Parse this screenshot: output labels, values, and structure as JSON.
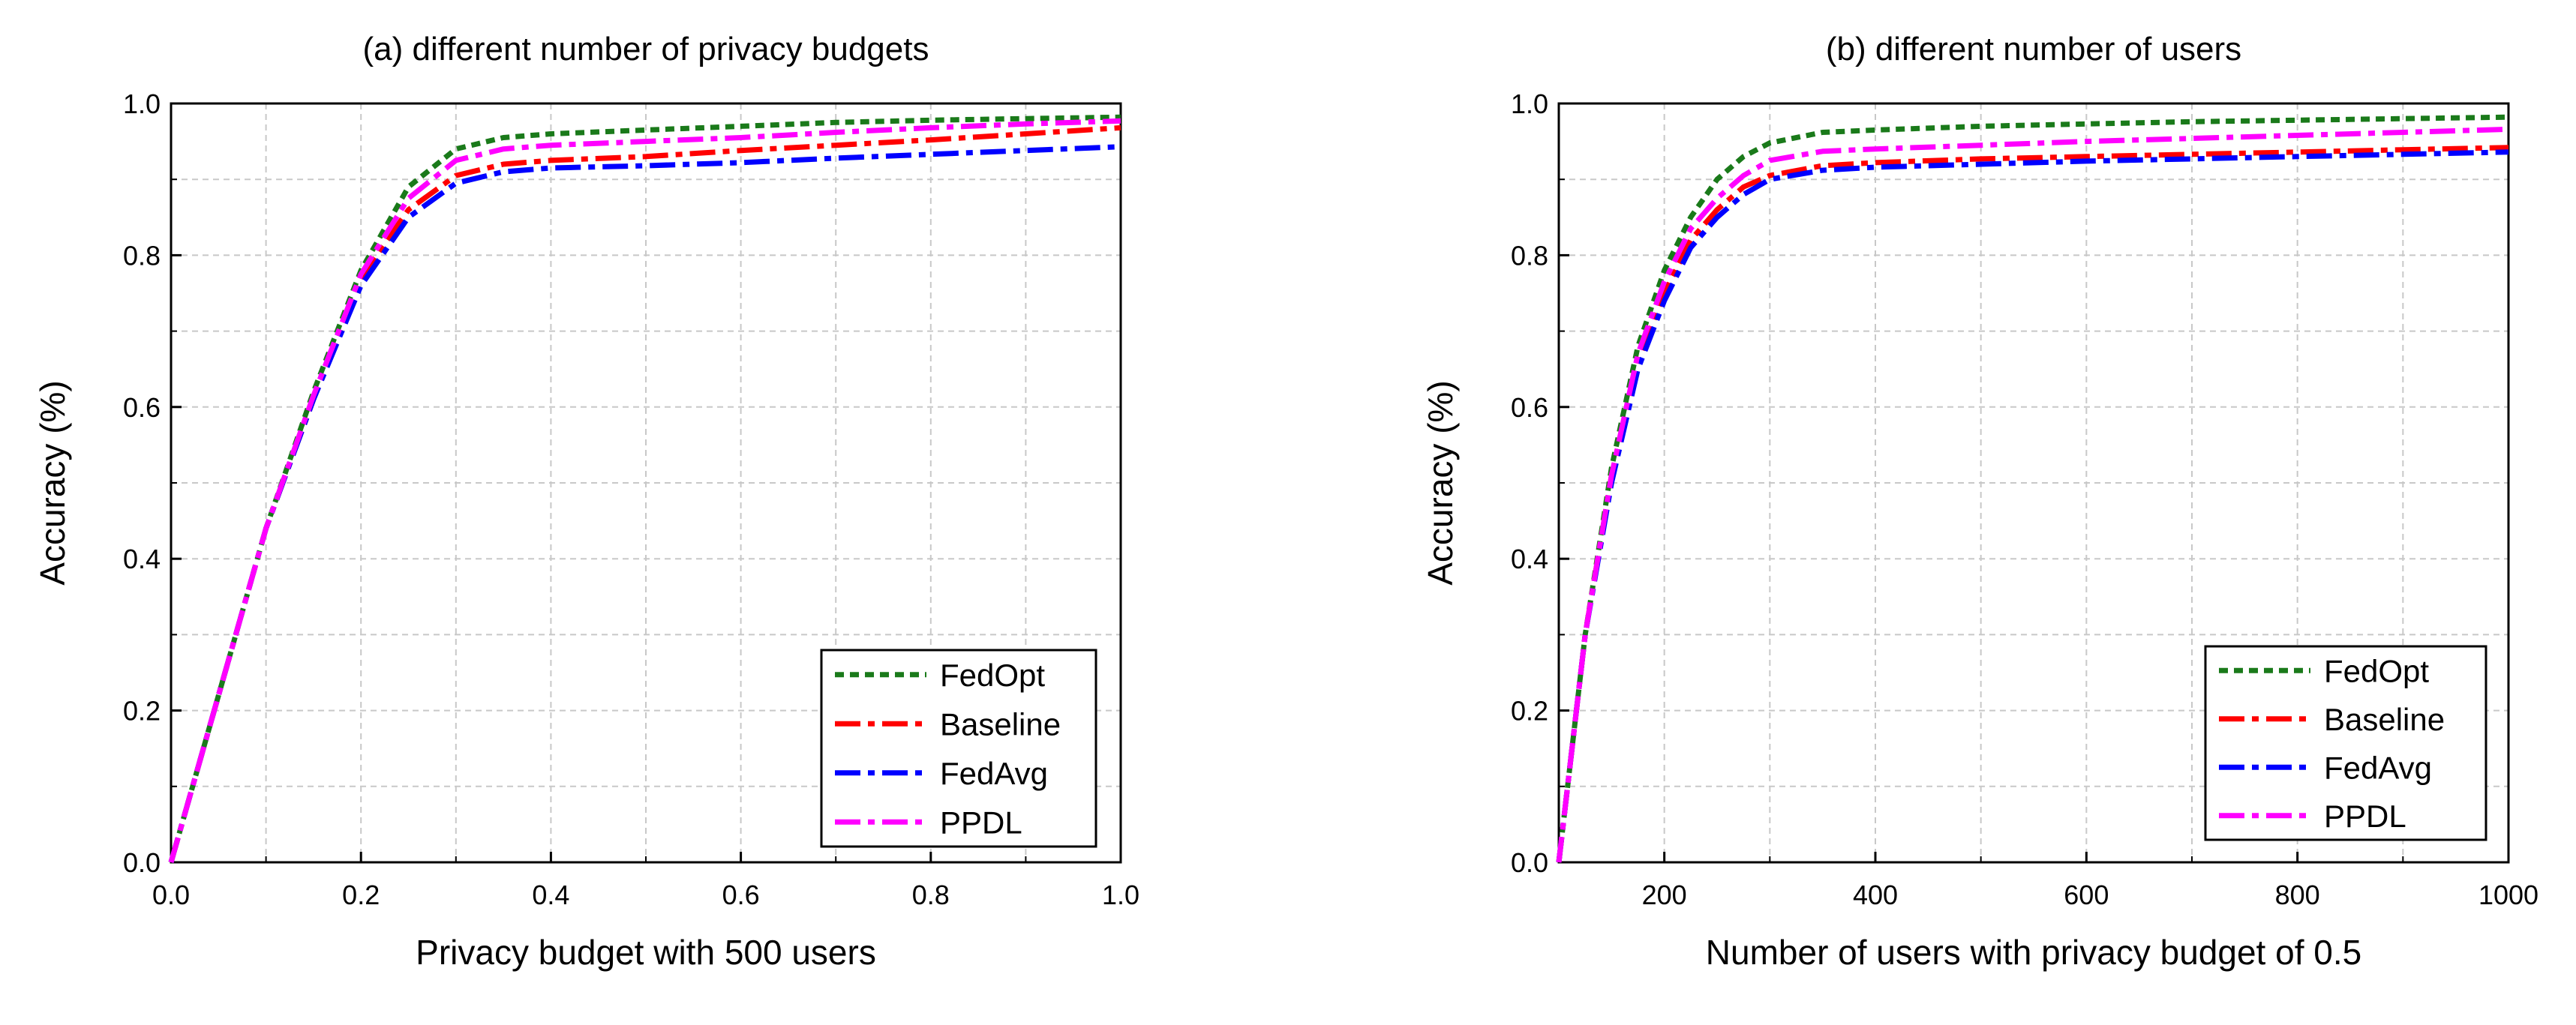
{
  "chart_data": [
    {
      "type": "line",
      "title": "(a) different number of privacy budgets",
      "xlabel": "Privacy budget with 500 users",
      "ylabel": "Accuracy (%)",
      "xlim": [
        0.0,
        1.0
      ],
      "ylim": [
        0.0,
        1.0
      ],
      "xticks": [
        "0.0",
        "0.2",
        "0.4",
        "0.6",
        "0.8",
        "1.0"
      ],
      "yticks": [
        "0.0",
        "0.2",
        "0.4",
        "0.6",
        "0.8",
        "1.0"
      ],
      "grid": true,
      "legend_position": "bottom-right",
      "x": [
        0.0,
        0.05,
        0.1,
        0.15,
        0.2,
        0.25,
        0.3,
        0.35,
        0.4,
        0.5,
        0.6,
        0.7,
        0.8,
        0.9,
        1.0
      ],
      "series": [
        {
          "name": "FedOpt",
          "style": "dotted",
          "color": "#1a7a1a",
          "values": [
            0.0,
            0.22,
            0.44,
            0.62,
            0.78,
            0.89,
            0.94,
            0.955,
            0.96,
            0.965,
            0.97,
            0.975,
            0.978,
            0.98,
            0.982
          ]
        },
        {
          "name": "Baseline",
          "style": "dashdot",
          "color": "#ff0000",
          "values": [
            0.0,
            0.22,
            0.44,
            0.61,
            0.77,
            0.86,
            0.905,
            0.92,
            0.925,
            0.93,
            0.938,
            0.945,
            0.952,
            0.96,
            0.968
          ]
        },
        {
          "name": "FedAvg",
          "style": "dashdot",
          "color": "#0000ff",
          "values": [
            0.0,
            0.22,
            0.44,
            0.61,
            0.76,
            0.85,
            0.895,
            0.91,
            0.915,
            0.918,
            0.922,
            0.928,
            0.933,
            0.938,
            0.943
          ]
        },
        {
          "name": "PPDL",
          "style": "dashdot",
          "color": "#ff00ff",
          "values": [
            0.0,
            0.22,
            0.44,
            0.615,
            0.775,
            0.875,
            0.925,
            0.94,
            0.945,
            0.95,
            0.955,
            0.962,
            0.968,
            0.973,
            0.977
          ]
        }
      ]
    },
    {
      "type": "line",
      "title": "(b) different number of users",
      "xlabel": "Number of users with privacy budget of 0.5",
      "ylabel": "Accuracy (%)",
      "xlim": [
        100,
        1000
      ],
      "ylim": [
        0.0,
        1.0
      ],
      "xticks": [
        "200",
        "400",
        "600",
        "800",
        "1000"
      ],
      "yticks": [
        "0.0",
        "0.2",
        "0.4",
        "0.6",
        "0.8",
        "1.0"
      ],
      "grid": true,
      "legend_position": "bottom-right",
      "x": [
        100,
        125,
        150,
        175,
        200,
        225,
        250,
        275,
        300,
        350,
        400,
        500,
        600,
        700,
        800,
        900,
        1000
      ],
      "series": [
        {
          "name": "FedOpt",
          "style": "dotted",
          "color": "#1a7a1a",
          "values": [
            0.0,
            0.3,
            0.52,
            0.68,
            0.78,
            0.85,
            0.9,
            0.93,
            0.948,
            0.962,
            0.965,
            0.97,
            0.973,
            0.976,
            0.978,
            0.98,
            0.982
          ]
        },
        {
          "name": "Baseline",
          "style": "dashdot",
          "color": "#ff0000",
          "values": [
            0.0,
            0.3,
            0.51,
            0.66,
            0.75,
            0.82,
            0.86,
            0.89,
            0.905,
            0.918,
            0.922,
            0.927,
            0.93,
            0.933,
            0.936,
            0.939,
            0.942
          ]
        },
        {
          "name": "FedAvg",
          "style": "dashdot",
          "color": "#0000ff",
          "values": [
            0.0,
            0.3,
            0.5,
            0.65,
            0.74,
            0.81,
            0.85,
            0.88,
            0.9,
            0.912,
            0.916,
            0.92,
            0.924,
            0.927,
            0.93,
            0.933,
            0.936
          ]
        },
        {
          "name": "PPDL",
          "style": "dashdot",
          "color": "#ff00ff",
          "values": [
            0.0,
            0.3,
            0.51,
            0.67,
            0.765,
            0.835,
            0.875,
            0.905,
            0.925,
            0.937,
            0.94,
            0.945,
            0.95,
            0.954,
            0.958,
            0.962,
            0.966
          ]
        }
      ]
    }
  ]
}
